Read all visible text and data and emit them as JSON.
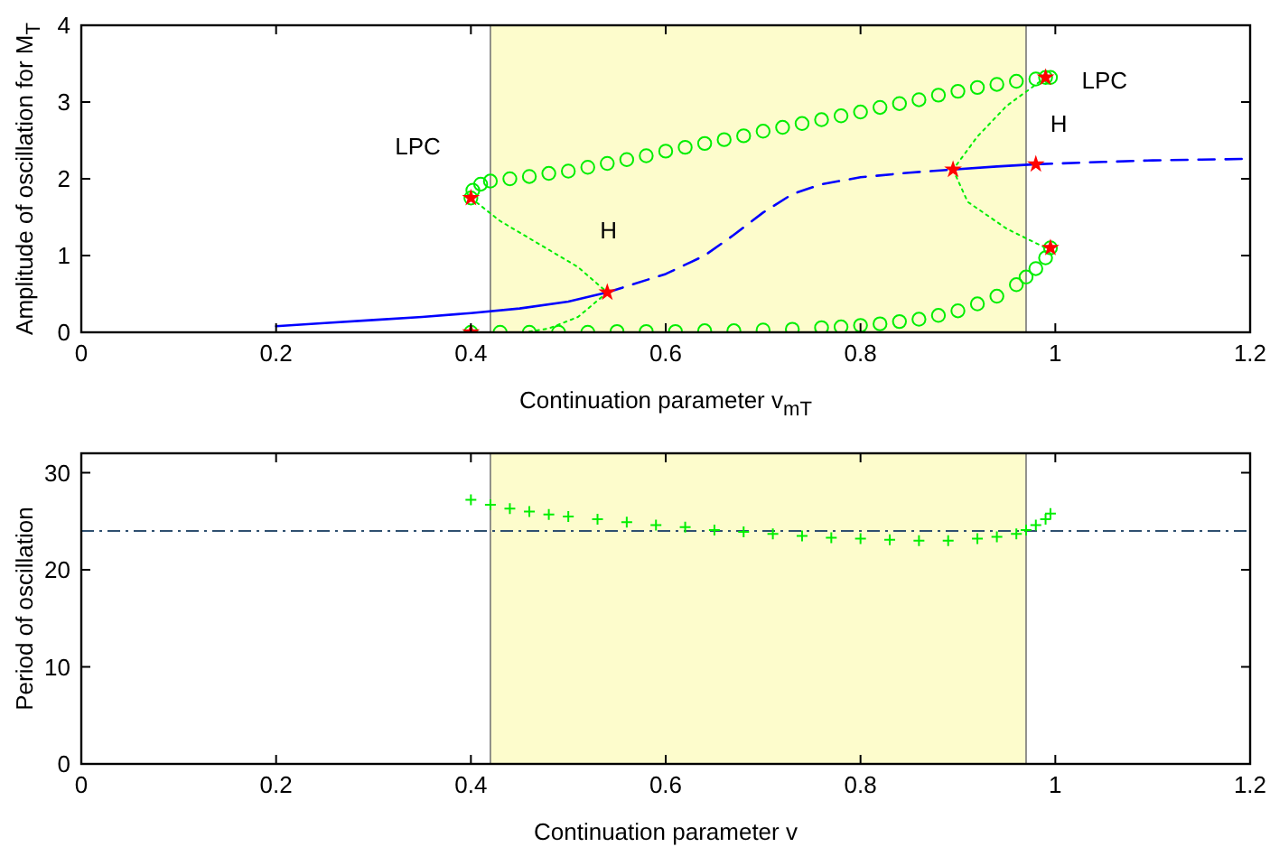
{
  "chart_data": [
    {
      "type": "line",
      "xlabel": "Continuation parameter v$_{mT}$",
      "ylabel": "Amplitude of oscillation for M$_{T}$",
      "xlim": [
        0,
        1.2
      ],
      "ylim": [
        0,
        4
      ],
      "xticks": [
        0,
        0.2,
        0.4,
        0.6,
        0.8,
        1,
        1.2
      ],
      "yticks": [
        0,
        1,
        2,
        3,
        4
      ],
      "bands": [
        {
          "axis": "x",
          "from": 0.42,
          "to": 0.97,
          "color": "#fdfccc"
        }
      ],
      "annotations": [
        {
          "text": "LPC",
          "x": 0.4,
          "y": 1.75
        },
        {
          "text": "H",
          "x": 0.54,
          "y": 0.52
        },
        {
          "text": "LPC",
          "x": 0.99,
          "y": 3.32
        },
        {
          "text": "H",
          "x": 0.98,
          "y": 2.19
        }
      ],
      "series": [
        {
          "type": "line",
          "color": "#0000ff",
          "line_style": "solid",
          "x": [
            0.2,
            0.25,
            0.3,
            0.35,
            0.4,
            0.45,
            0.5,
            0.54
          ],
          "values": [
            0.08,
            0.12,
            0.16,
            0.2,
            0.25,
            0.31,
            0.4,
            0.52
          ]
        },
        {
          "type": "line",
          "color": "#0000ff",
          "line_style": "dashed",
          "x": [
            0.54,
            0.6,
            0.64,
            0.67,
            0.7,
            0.73,
            0.76,
            0.8,
            0.85,
            0.895
          ],
          "values": [
            0.52,
            0.76,
            1.0,
            1.27,
            1.56,
            1.8,
            1.93,
            2.02,
            2.08,
            2.12
          ]
        },
        {
          "type": "line",
          "color": "#0000ff",
          "line_style": "solid",
          "x": [
            0.895,
            0.94,
            0.98
          ],
          "values": [
            2.12,
            2.16,
            2.19
          ]
        },
        {
          "type": "line",
          "color": "#0000ff",
          "line_style": "dashed",
          "x": [
            0.98,
            1.05,
            1.1,
            1.15,
            1.2
          ],
          "values": [
            2.19,
            2.22,
            2.24,
            2.25,
            2.26
          ]
        },
        {
          "type": "scatter",
          "color": "#00ee00",
          "marker": "circle",
          "x": [
            0.4,
            0.402,
            0.41,
            0.42,
            0.44,
            0.46,
            0.48,
            0.5,
            0.52,
            0.54,
            0.56,
            0.58,
            0.6,
            0.62,
            0.64,
            0.66,
            0.68,
            0.7,
            0.72,
            0.74,
            0.76,
            0.78,
            0.8,
            0.82,
            0.84,
            0.86,
            0.88,
            0.9,
            0.92,
            0.94,
            0.96,
            0.98,
            0.99,
            0.995
          ],
          "values": [
            1.75,
            1.85,
            1.93,
            1.97,
            2.0,
            2.03,
            2.07,
            2.1,
            2.15,
            2.2,
            2.25,
            2.3,
            2.36,
            2.41,
            2.46,
            2.51,
            2.56,
            2.62,
            2.67,
            2.72,
            2.77,
            2.82,
            2.87,
            2.93,
            2.98,
            3.03,
            3.09,
            3.14,
            3.19,
            3.23,
            3.27,
            3.3,
            3.32,
            3.32
          ]
        },
        {
          "type": "scatter",
          "color": "#00ee00",
          "marker": "circle",
          "x": [
            0.4,
            0.43,
            0.46,
            0.49,
            0.52,
            0.55,
            0.58,
            0.61,
            0.64,
            0.67,
            0.7,
            0.73,
            0.76,
            0.78,
            0.8,
            0.82,
            0.84,
            0.86,
            0.88,
            0.9,
            0.92,
            0.94,
            0.96,
            0.97,
            0.98,
            0.99,
            0.995
          ],
          "values": [
            0.0,
            0.0,
            0.0,
            0.0,
            0.0,
            0.01,
            0.01,
            0.01,
            0.02,
            0.02,
            0.03,
            0.04,
            0.06,
            0.07,
            0.09,
            0.11,
            0.14,
            0.17,
            0.22,
            0.28,
            0.37,
            0.47,
            0.62,
            0.72,
            0.83,
            0.97,
            1.1
          ]
        },
        {
          "type": "line",
          "color": "#00ee00",
          "line_style": "dotted",
          "x": [
            0.4,
            0.43,
            0.47,
            0.51,
            0.54
          ],
          "values": [
            1.75,
            1.45,
            1.15,
            0.85,
            0.52
          ]
        },
        {
          "type": "line",
          "color": "#00ee00",
          "line_style": "dotted",
          "x": [
            0.54,
            0.51,
            0.48,
            0.46
          ],
          "values": [
            0.52,
            0.2,
            0.05,
            0.01
          ]
        },
        {
          "type": "line",
          "color": "#00ee00",
          "line_style": "dotted",
          "x": [
            0.99,
            0.95,
            0.92,
            0.895
          ],
          "values": [
            3.32,
            2.95,
            2.55,
            2.12
          ]
        },
        {
          "type": "line",
          "color": "#00ee00",
          "line_style": "dotted",
          "x": [
            0.895,
            0.91,
            0.95,
            0.99
          ],
          "values": [
            2.12,
            1.7,
            1.35,
            1.1
          ]
        },
        {
          "type": "scatter",
          "color": "#ff0000",
          "marker": "star",
          "x": [
            0.4,
            0.4,
            0.54,
            0.895,
            0.98,
            0.99,
            0.995
          ],
          "values": [
            1.75,
            0.0,
            0.52,
            2.12,
            2.19,
            3.32,
            1.1
          ]
        }
      ]
    },
    {
      "type": "line",
      "xlabel": "Continuation parameter v",
      "ylabel": "Period of oscillation",
      "xlim": [
        0,
        1.2
      ],
      "ylim": [
        0,
        32
      ],
      "xticks": [
        0,
        0.2,
        0.4,
        0.6,
        0.8,
        1,
        1.2
      ],
      "yticks": [
        0,
        10,
        20,
        30
      ],
      "bands": [
        {
          "axis": "x",
          "from": 0.42,
          "to": 0.97,
          "color": "#fdfccc"
        }
      ],
      "ref_lines": [
        {
          "axis": "y",
          "value": 24,
          "color": "#2f5070",
          "line_style": "dashed"
        }
      ],
      "series": [
        {
          "type": "scatter",
          "color": "#00ee00",
          "marker": "cross",
          "x": [
            0.4,
            0.42,
            0.44,
            0.46,
            0.48,
            0.5,
            0.53,
            0.56,
            0.59,
            0.62,
            0.65,
            0.68,
            0.71,
            0.74,
            0.77,
            0.8,
            0.83,
            0.86,
            0.89,
            0.92,
            0.94,
            0.96,
            0.97,
            0.98,
            0.99,
            0.995
          ],
          "values": [
            27.2,
            26.7,
            26.3,
            26.0,
            25.7,
            25.5,
            25.2,
            24.9,
            24.6,
            24.4,
            24.1,
            23.9,
            23.7,
            23.5,
            23.3,
            23.2,
            23.1,
            23.0,
            23.0,
            23.2,
            23.4,
            23.7,
            24.1,
            24.6,
            25.2,
            25.8
          ]
        }
      ]
    }
  ]
}
